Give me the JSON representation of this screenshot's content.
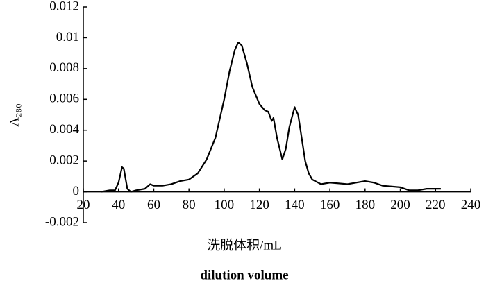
{
  "chart_data": {
    "type": "line",
    "y_label": "A₂₈₀",
    "x_label": "洗脱体积/mL",
    "x_label_english": "dilution volume",
    "xlim": [
      20,
      240
    ],
    "xticks": [
      20,
      40,
      60,
      80,
      100,
      120,
      140,
      160,
      180,
      200,
      220,
      240
    ],
    "ylim": [
      -0.002,
      0.012
    ],
    "yticks": [
      -0.002,
      0,
      0.002,
      0.004,
      0.006,
      0.008,
      0.01,
      0.012
    ],
    "series": [
      {
        "color": "#000000",
        "x": [
          30,
          35,
          38,
          40,
          42,
          43,
          45,
          47,
          50,
          55,
          58,
          60,
          65,
          70,
          75,
          80,
          85,
          90,
          95,
          100,
          103,
          106,
          108,
          110,
          113,
          116,
          120,
          123,
          125,
          127,
          128,
          130,
          133,
          135,
          137,
          140,
          142,
          144,
          146,
          148,
          150,
          155,
          160,
          170,
          180,
          185,
          190,
          200,
          205,
          210,
          215,
          220,
          223
        ],
        "values": [
          0,
          0.0001,
          0.0001,
          0.0006,
          0.0016,
          0.0015,
          0.0002,
          0,
          0.0001,
          0.0002,
          0.0005,
          0.0004,
          0.0004,
          0.0005,
          0.0007,
          0.0008,
          0.0012,
          0.0021,
          0.0035,
          0.006,
          0.0078,
          0.0092,
          0.0097,
          0.0095,
          0.0083,
          0.0068,
          0.0057,
          0.0053,
          0.0052,
          0.0046,
          0.0048,
          0.0035,
          0.0021,
          0.0028,
          0.0042,
          0.0055,
          0.005,
          0.0035,
          0.002,
          0.0012,
          0.0008,
          0.0005,
          0.0006,
          0.0005,
          0.0007,
          0.0006,
          0.0004,
          0.0003,
          0.0001,
          0.0001,
          0.0002,
          0.0002,
          0.0002
        ]
      }
    ]
  }
}
